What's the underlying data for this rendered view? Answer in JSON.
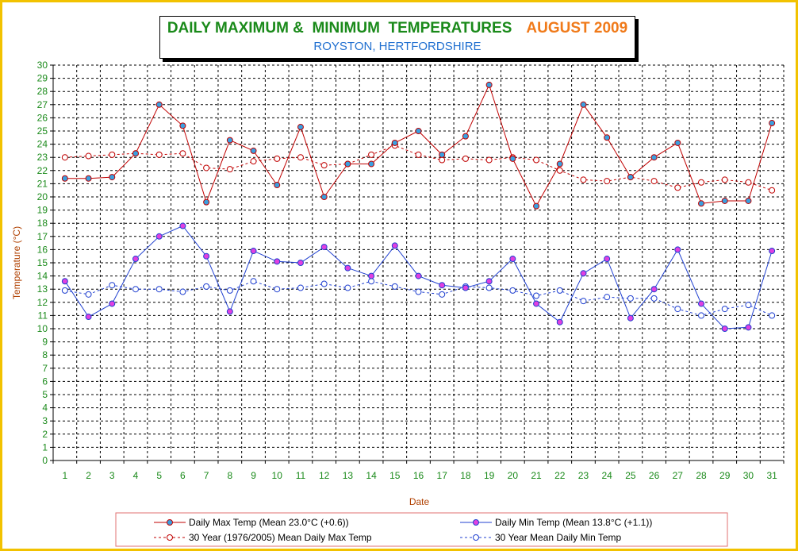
{
  "title": {
    "main": "DAILY MAXIMUM &  MINIMUM  TEMPERATURES",
    "month": "AUGUST 2009",
    "subtitle": "ROYSTON, HERTFORDSHIRE"
  },
  "colors": {
    "frame": "#f2c200",
    "max": "#c00000",
    "min": "#2040d0",
    "axis_ticks": "#1a8a1a",
    "axis_title": "#b04000",
    "marker_max_fill": "#3aa0e0",
    "marker_min_fill": "#e040e0"
  },
  "chart_data": {
    "type": "line",
    "xlabel": "Date",
    "ylabel": "Temperature (°C)",
    "ylim": [
      0,
      30
    ],
    "grid": true,
    "legend_position": "bottom",
    "x": [
      1,
      2,
      3,
      4,
      5,
      6,
      7,
      8,
      9,
      10,
      11,
      12,
      13,
      14,
      15,
      16,
      17,
      18,
      19,
      20,
      21,
      22,
      23,
      24,
      25,
      26,
      27,
      28,
      29,
      30,
      31
    ],
    "series": [
      {
        "name": "Daily Max Temp (Mean 23.0°C (+0.6))",
        "style": "solid",
        "values": [
          21.4,
          21.4,
          21.5,
          23.3,
          27.0,
          25.4,
          19.6,
          24.3,
          23.5,
          20.9,
          25.3,
          20.0,
          22.5,
          22.5,
          24.1,
          25.0,
          23.2,
          24.6,
          28.5,
          22.9,
          19.3,
          22.5,
          27.0,
          24.5,
          21.5,
          23.0,
          24.1,
          19.5,
          19.7,
          19.7,
          25.6
        ]
      },
      {
        "name": "Daily Min Temp (Mean 13.8°C (+1.1))",
        "style": "solid",
        "values": [
          13.6,
          10.9,
          11.9,
          15.3,
          17.0,
          17.8,
          15.5,
          11.3,
          15.9,
          15.1,
          15.0,
          16.2,
          14.6,
          14.0,
          16.3,
          14.0,
          13.3,
          13.1,
          13.6,
          15.3,
          11.9,
          10.5,
          14.2,
          15.3,
          10.8,
          13.0,
          16.0,
          11.9,
          10.0,
          10.1,
          15.9
        ]
      },
      {
        "name": "30 Year (1976/2005) Mean Daily Max Temp",
        "style": "dashed",
        "values": [
          23.0,
          23.1,
          23.2,
          23.3,
          23.2,
          23.3,
          22.2,
          22.1,
          22.7,
          22.9,
          23.0,
          22.4,
          22.5,
          23.2,
          23.9,
          23.2,
          22.8,
          22.9,
          22.8,
          23.0,
          22.8,
          22.0,
          21.3,
          21.2,
          21.5,
          21.2,
          20.7,
          21.1,
          21.3,
          21.1,
          20.5
        ]
      },
      {
        "name": "30 Year Mean Daily Min Temp",
        "style": "dashed",
        "values": [
          12.9,
          12.6,
          13.3,
          13.0,
          13.0,
          12.8,
          13.2,
          12.9,
          13.6,
          13.0,
          13.1,
          13.4,
          13.1,
          13.6,
          13.2,
          12.8,
          12.6,
          13.2,
          13.1,
          12.9,
          12.5,
          12.9,
          12.1,
          12.4,
          12.3,
          12.3,
          11.5,
          11.0,
          11.5,
          11.8,
          11.0
        ]
      }
    ]
  }
}
